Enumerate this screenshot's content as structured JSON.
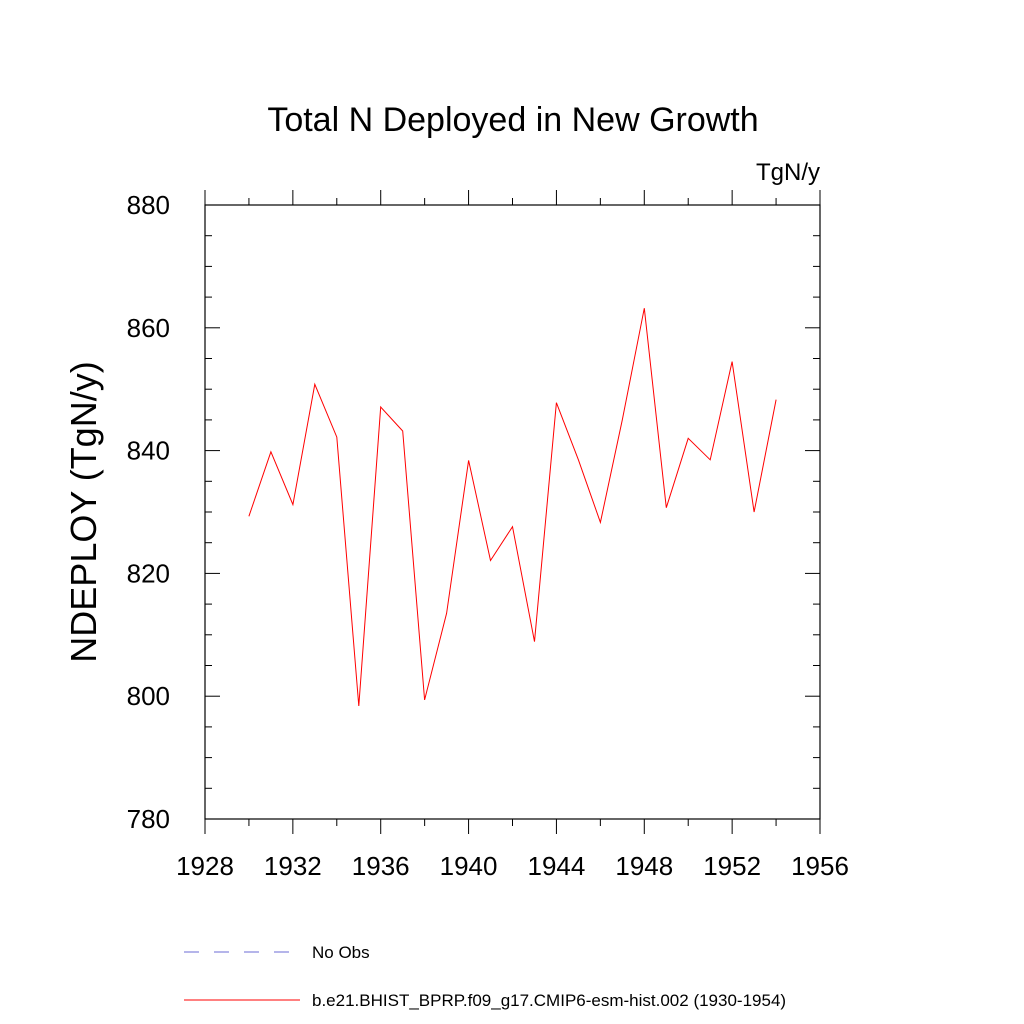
{
  "chart_data": {
    "type": "line",
    "title": "Total N Deployed in New Growth",
    "units": "TgN/y",
    "xlabel": "",
    "ylabel": "NDEPLOY  (TgN/y)",
    "xlim": [
      1928,
      1956
    ],
    "ylim": [
      780,
      880
    ],
    "x_ticks": [
      1928,
      1932,
      1936,
      1940,
      1944,
      1948,
      1952,
      1956
    ],
    "x_tick_labels": [
      "1928",
      "1932",
      "1936",
      "1940",
      "1944",
      "1948",
      "1952",
      "1956"
    ],
    "y_ticks": [
      780,
      800,
      820,
      840,
      860,
      880
    ],
    "y_tick_labels": [
      "780",
      "800",
      "820",
      "840",
      "860",
      "880"
    ],
    "x_minor_step": 2,
    "y_minor_step": 5,
    "series": [
      {
        "name": "b.e21.BHIST_BPRP.f09_g17.CMIP6-esm-hist.002 (1930-1954)",
        "color": "#ff0000",
        "style": "solid",
        "x": [
          1930,
          1931,
          1932,
          1933,
          1934,
          1935,
          1936,
          1937,
          1938,
          1939,
          1940,
          1941,
          1942,
          1943,
          1944,
          1945,
          1946,
          1947,
          1948,
          1949,
          1950,
          1951,
          1952,
          1953,
          1954
        ],
        "values": [
          829.3,
          839.8,
          831.2,
          850.8,
          842.2,
          798.4,
          847.1,
          843.2,
          799.4,
          813.5,
          838.4,
          822.1,
          827.6,
          808.9,
          847.8,
          838.5,
          828.3,
          845.0,
          863.2,
          830.7,
          842.0,
          838.5,
          854.5,
          830.0,
          848.3
        ]
      }
    ],
    "legend": {
      "position": "bottom-left",
      "entries": [
        {
          "label": "No Obs",
          "color": "#6b6bd6",
          "style": "dashed"
        },
        {
          "label": "b.e21.BHIST_BPRP.f09_g17.CMIP6-esm-hist.002 (1930-1954)",
          "color": "#ff0000",
          "style": "solid"
        }
      ]
    }
  }
}
